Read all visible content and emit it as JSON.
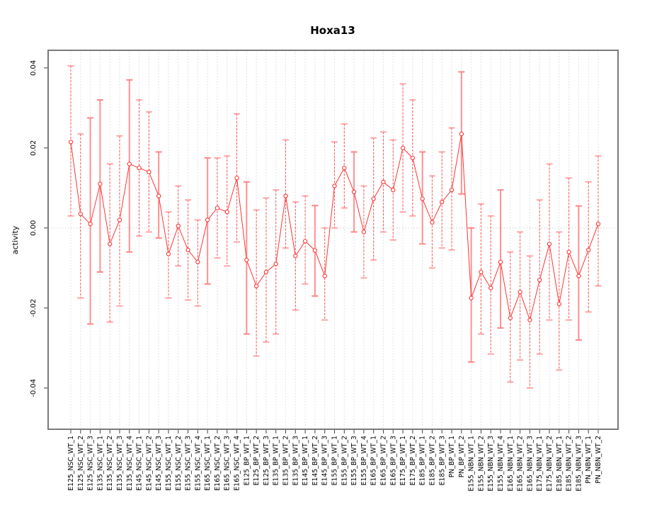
{
  "title": "Hoxa13",
  "chart_data": {
    "type": "line",
    "title": "Hoxa13",
    "xlabel": "",
    "ylabel": "activity",
    "legend_position": "none",
    "grid": "vertical dotted gridline at every category; horizontal dotted line at y=0 only",
    "marker": "open-circle",
    "point_color": "#ff3333",
    "dashed_bar_color": "#ff5050",
    "solid_bar_color": "#ff9090",
    "frame_color": "#7a7a7a",
    "ylim": [
      -0.0503,
      0.0444
    ],
    "yticks": [
      {
        "v": 0.04,
        "label": "0.04"
      },
      {
        "v": 0.02,
        "label": "0.02"
      },
      {
        "v": 0.0,
        "label": "0.00"
      },
      {
        "v": -0.02,
        "label": "-0.02"
      },
      {
        "v": -0.04,
        "label": "-0.04"
      }
    ],
    "categories": [
      "E125_NSC_WT_1",
      "E125_NSC_WT_2",
      "E125_NSC_WT_3",
      "E135_NSC_WT_1",
      "E135_NSC_WT_2",
      "E135_NSC_WT_3",
      "E135_NSC_WT_4",
      "E145_NSC_WT_1",
      "E145_NSC_WT_2",
      "E145_NSC_WT_3",
      "E155_NSC_WT_1",
      "E155_NSC_WT_2",
      "E155_NSC_WT_3",
      "E155_NSC_WT_4",
      "E165_NSC_WT_1",
      "E165_NSC_WT_2",
      "E165_NSC_WT_3",
      "E165_NSC_WT_4",
      "E125_BP_WT_1",
      "E125_BP_WT_2",
      "E125_BP_WT_3",
      "E135_BP_WT_1",
      "E135_BP_WT_2",
      "E135_BP_WT_3",
      "E145_BP_WT_1",
      "E145_BP_WT_2",
      "E145_BP_WT_3",
      "E155_BP_WT_1",
      "E155_BP_WT_2",
      "E155_BP_WT_3",
      "E155_BP_WT_4",
      "E165_BP_WT_1",
      "E165_BP_WT_2",
      "E165_BP_WT_3",
      "E175_BP_WT_1",
      "E175_BP_WT_2",
      "E185_BP_WT_1",
      "E185_BP_WT_2",
      "E185_BP_WT_3",
      "PN_BP_WT_1",
      "PN_BP_WT_2",
      "E155_NBN_WT_1",
      "E155_NBN_WT_2",
      "E155_NBN_WT_3",
      "E155_NBN_WT_4",
      "E165_NBN_WT_1",
      "E165_NBN_WT_2",
      "E165_NBN_WT_3",
      "E175_NBN_WT_1",
      "E175_NBN_WT_2",
      "E185_NBN_WT_1",
      "E185_NBN_WT_2",
      "E185_NBN_WT_3",
      "PN_NBN_WT_1",
      "PN_NBN_WT_2"
    ],
    "series": [
      {
        "name": "activity",
        "values": [
          0.0215,
          0.0035,
          0.001,
          0.011,
          -0.004,
          0.002,
          0.016,
          0.015,
          0.014,
          0.008,
          -0.0065,
          0.0005,
          -0.0055,
          -0.0085,
          0.002,
          0.005,
          0.004,
          0.0125,
          -0.008,
          -0.0145,
          -0.011,
          -0.009,
          0.008,
          -0.007,
          -0.0033,
          -0.0056,
          -0.012,
          0.0105,
          0.015,
          0.009,
          -0.001,
          0.0073,
          0.0115,
          0.0095,
          0.02,
          0.0175,
          0.0073,
          0.0014,
          0.0065,
          0.0095,
          0.0235,
          -0.0175,
          -0.011,
          -0.015,
          -0.0085,
          -0.0225,
          -0.016,
          -0.023,
          -0.013,
          -0.004,
          -0.019,
          -0.006,
          -0.012,
          -0.0055,
          0.001
        ],
        "error_high": [
          0.0405,
          0.0235,
          0.0275,
          0.032,
          0.016,
          0.023,
          0.037,
          0.032,
          0.029,
          0.019,
          0.004,
          0.0105,
          0.007,
          0.002,
          0.0175,
          0.0175,
          0.018,
          0.0285,
          0.0115,
          0.0045,
          0.0075,
          0.0095,
          0.022,
          0.0065,
          0.008,
          0.0056,
          0.0,
          0.0215,
          0.026,
          0.019,
          0.0105,
          0.0225,
          0.024,
          0.022,
          0.036,
          0.032,
          0.019,
          0.013,
          0.019,
          0.025,
          0.039,
          0.0,
          0.006,
          0.003,
          0.0095,
          -0.006,
          -0.001,
          -0.007,
          0.007,
          0.016,
          -0.001,
          0.0125,
          0.0055,
          0.0115,
          0.018
        ],
        "error_low": [
          0.003,
          -0.0175,
          -0.024,
          -0.011,
          -0.0235,
          -0.0195,
          -0.006,
          -0.002,
          -0.001,
          -0.0025,
          -0.0175,
          -0.0095,
          -0.018,
          -0.0195,
          -0.014,
          -0.0075,
          -0.0095,
          -0.0035,
          -0.0265,
          -0.032,
          -0.0285,
          -0.0265,
          -0.005,
          -0.0205,
          -0.014,
          -0.017,
          -0.023,
          0.0,
          0.005,
          -0.001,
          -0.0125,
          -0.008,
          -0.001,
          -0.003,
          0.004,
          0.003,
          -0.004,
          -0.01,
          -0.005,
          -0.0055,
          0.0085,
          -0.0335,
          -0.0265,
          -0.0315,
          -0.025,
          -0.0385,
          -0.033,
          -0.04,
          -0.0315,
          -0.023,
          -0.0355,
          -0.023,
          -0.028,
          -0.021,
          -0.0145
        ],
        "bar_style": [
          "d",
          "d",
          "s",
          "s",
          "d",
          "d",
          "s",
          "d",
          "d",
          "s",
          "d",
          "d",
          "d",
          "d",
          "s",
          "d",
          "d",
          "d",
          "s",
          "d",
          "d",
          "d",
          "d",
          "d",
          "d",
          "s",
          "d",
          "d",
          "d",
          "s",
          "d",
          "d",
          "d",
          "d",
          "d",
          "d",
          "s",
          "d",
          "d",
          "d",
          "s",
          "s",
          "d",
          "d",
          "s",
          "d",
          "d",
          "d",
          "d",
          "d",
          "d",
          "d",
          "s",
          "d",
          "d"
        ]
      }
    ]
  }
}
